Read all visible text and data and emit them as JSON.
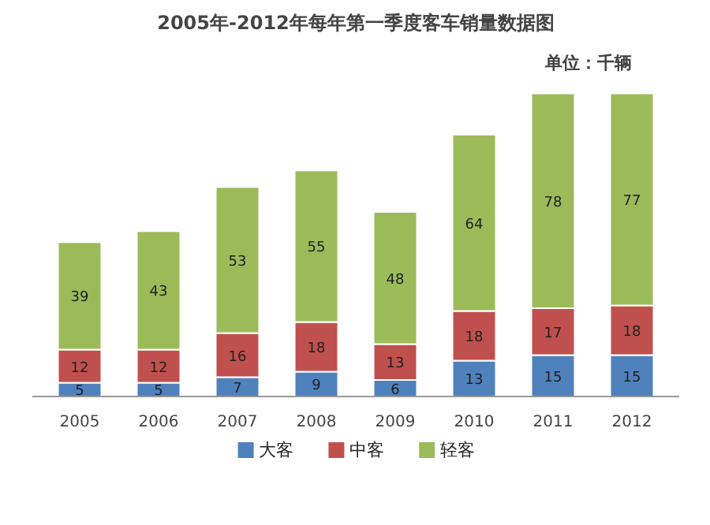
{
  "chart_data": {
    "type": "bar",
    "title": "2005年-2012年每年第一季度客车销量数据图",
    "annotations": [
      "单位：千辆"
    ],
    "stacked": true,
    "data_labels": true,
    "legend": "bottom",
    "grid": false,
    "categories": [
      "2005",
      "2006",
      "2007",
      "2008",
      "2009",
      "2010",
      "2011",
      "2012"
    ],
    "series": [
      {
        "name": "大客",
        "color": "#4f81bd",
        "values": [
          5,
          5,
          7,
          9,
          6,
          13,
          15,
          15
        ]
      },
      {
        "name": "中客",
        "color": "#c0504d",
        "values": [
          12,
          12,
          16,
          18,
          13,
          18,
          17,
          18
        ]
      },
      {
        "name": "轻客",
        "color": "#9bbb59",
        "values": [
          39,
          43,
          53,
          55,
          48,
          64,
          78,
          77
        ]
      }
    ]
  }
}
